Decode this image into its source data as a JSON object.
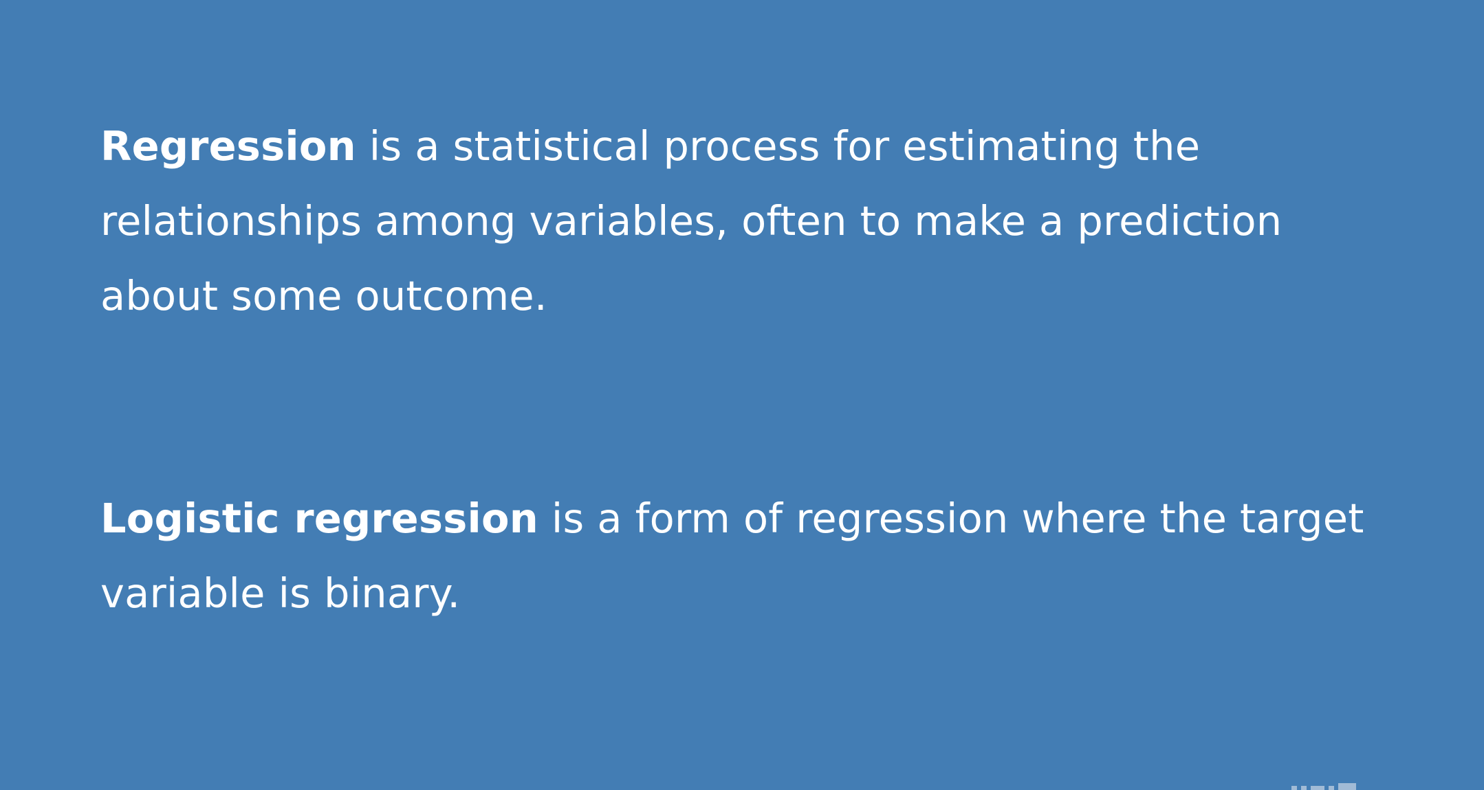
{
  "slide": {
    "paragraphs": [
      {
        "term": "Regression",
        "text": " is a statistical process for estimating the relationships among variables, often to make a prediction about some outcome."
      },
      {
        "term": "Logistic regression",
        "text": " is a form of regression where the target variable is binary."
      }
    ]
  },
  "colors": {
    "background": "#437db4",
    "text": "#ffffff"
  }
}
